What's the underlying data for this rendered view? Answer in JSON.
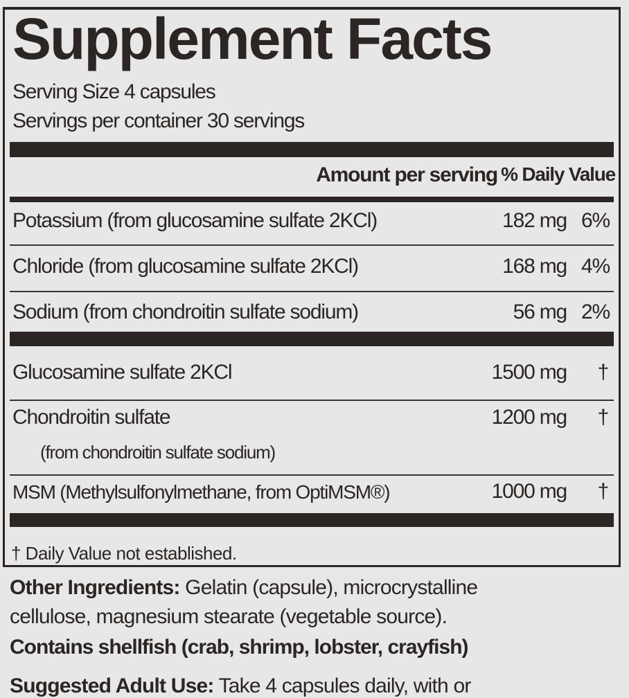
{
  "title": "Supplement Facts",
  "serving_size": "Serving Size  4 capsules",
  "servings_per_container": "Servings per container  30 servings",
  "header": {
    "amount": "Amount per serving",
    "daily_value": "% Daily Value"
  },
  "rows": [
    {
      "name": "Potassium (from glucosamine sulfate 2KCl)",
      "amount": "182 mg",
      "dv": "6%"
    },
    {
      "name": "Chloride (from glucosamine sulfate 2KCl)",
      "amount": "168 mg",
      "dv": "4%"
    },
    {
      "name": "Sodium (from chondroitin sulfate sodium)",
      "amount": "56 mg",
      "dv": "2%"
    },
    {
      "name": "Glucosamine sulfate 2KCl",
      "amount": "1500 mg",
      "dv": "†"
    },
    {
      "name": "Chondroitin sulfate",
      "sub": "(from chondroitin sulfate sodium)",
      "amount": "1200 mg",
      "dv": "†"
    },
    {
      "name": "MSM (Methylsulfonylmethane, from OptiMSM®)",
      "amount": "1000 mg",
      "dv": "†"
    }
  ],
  "footnote": "† Daily Value not established.",
  "other_ingredients": {
    "label": "Other Ingredients:",
    "text": " Gelatin (capsule), microcrystalline",
    "text2": "cellulose, magnesium stearate (vegetable source)."
  },
  "allergen": "Contains shellfish (crab, shrimp, lobster, crayfish)",
  "suggested_use": {
    "label": "Suggested Adult Use:",
    "text": " Take 4 capsules daily, with or"
  }
}
